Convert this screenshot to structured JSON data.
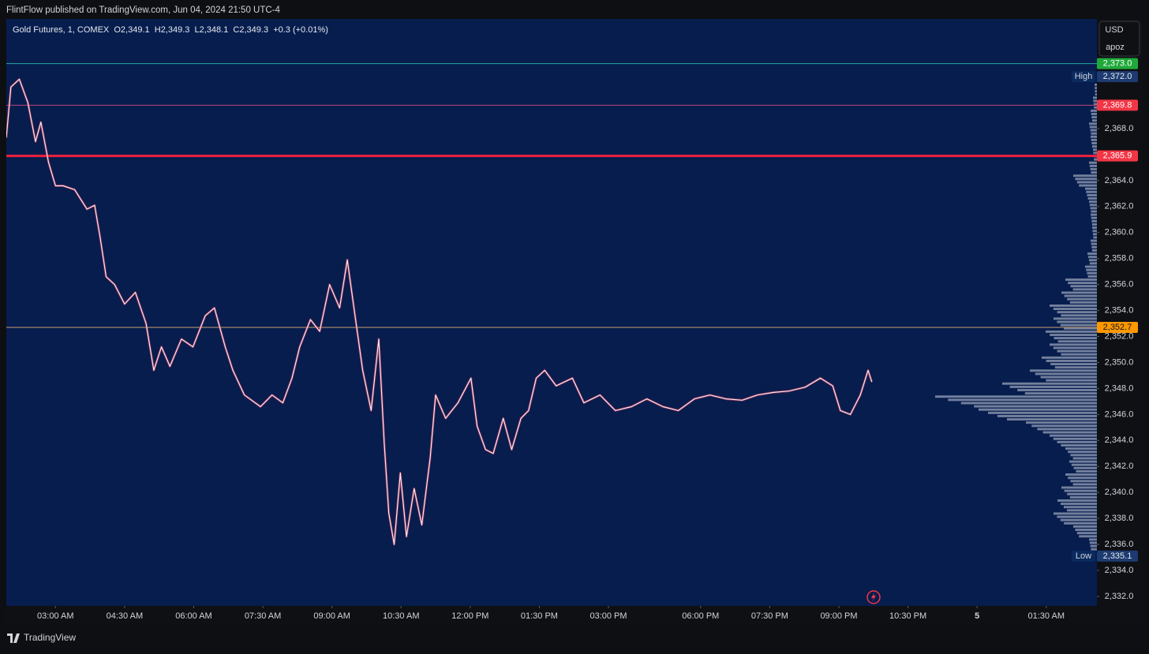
{
  "header": {
    "text": "FlintFlow published on TradingView.com, Jun 04, 2024 21:50 UTC-4"
  },
  "footer": {
    "brand": "TradingView"
  },
  "chart_data": {
    "type": "line",
    "title": "Gold Futures, 1, COMEX  O2,349.1  H2,349.3  L2,348.1  C2,349.3  +0.3 (+0.01%)",
    "currency": "USD",
    "scale_mode": "apoz",
    "color": "#f3e9ee",
    "x": [
      0,
      6,
      17,
      28,
      38,
      45,
      55,
      64,
      74,
      89,
      105,
      115,
      122,
      130,
      141,
      154,
      168,
      182,
      192,
      202,
      213,
      228,
      243,
      259,
      271,
      285,
      295,
      310,
      331,
      346,
      360,
      372,
      382,
      396,
      408,
      421,
      434,
      444,
      454,
      464,
      475,
      485,
      492,
      498,
      505,
      513,
      521,
      531,
      541,
      552,
      559,
      572,
      588,
      605,
      613,
      624,
      634,
      647,
      658,
      670,
      680,
      690,
      701,
      716,
      737,
      752,
      773,
      793,
      814,
      834,
      855,
      875,
      896,
      916,
      937,
      958,
      978,
      999,
      1019,
      1040,
      1060,
      1076,
      1086,
      1099,
      1112,
      1122,
      1127
    ],
    "values": [
      2367.3,
      2371.2,
      2371.8,
      2370.0,
      2367.0,
      2368.5,
      2365.4,
      2363.6,
      2363.6,
      2363.3,
      2361.8,
      2362.1,
      2359.7,
      2356.6,
      2356.0,
      2354.5,
      2355.4,
      2353.0,
      2349.4,
      2351.2,
      2349.7,
      2351.8,
      2351.2,
      2353.6,
      2354.2,
      2351.2,
      2349.4,
      2347.5,
      2346.6,
      2347.5,
      2346.9,
      2348.8,
      2351.2,
      2353.3,
      2352.4,
      2356.0,
      2354.2,
      2357.9,
      2353.6,
      2349.4,
      2346.3,
      2351.8,
      2343.9,
      2338.4,
      2336.0,
      2341.5,
      2336.6,
      2340.3,
      2337.5,
      2342.7,
      2347.5,
      2345.7,
      2346.9,
      2348.8,
      2345.1,
      2343.3,
      2343.0,
      2345.7,
      2343.3,
      2345.7,
      2346.3,
      2348.8,
      2349.4,
      2348.2,
      2348.8,
      2346.9,
      2347.5,
      2346.3,
      2346.6,
      2347.2,
      2346.6,
      2346.3,
      2347.2,
      2347.5,
      2347.2,
      2347.1,
      2347.5,
      2347.7,
      2347.8,
      2348.1,
      2348.8,
      2348.2,
      2346.3,
      2346.0,
      2347.5,
      2349.4,
      2348.5
    ],
    "xlim": [
      0,
      1420
    ],
    "xticks": [
      {
        "value": 64,
        "label": "03:00 AM"
      },
      {
        "value": 154,
        "label": "04:30 AM"
      },
      {
        "value": 244,
        "label": "06:00 AM"
      },
      {
        "value": 334,
        "label": "07:30 AM"
      },
      {
        "value": 424,
        "label": "09:00 AM"
      },
      {
        "value": 514,
        "label": "10:30 AM"
      },
      {
        "value": 604,
        "label": "12:00 PM"
      },
      {
        "value": 694,
        "label": "01:30 PM"
      },
      {
        "value": 784,
        "label": "03:00 PM"
      },
      {
        "value": 904,
        "label": "06:00 PM"
      },
      {
        "value": 994,
        "label": "07:30 PM"
      },
      {
        "value": 1084,
        "label": "09:00 PM"
      },
      {
        "value": 1174,
        "label": "10:30 PM"
      },
      {
        "value": 1264,
        "label": "5"
      },
      {
        "value": 1354,
        "label": "01:30 AM"
      }
    ],
    "ylim": [
      2331.27,
      2376.44
    ],
    "yticks": [
      {
        "value": 2332,
        "label": "2,332.0"
      },
      {
        "value": 2334,
        "label": "2,334.0"
      },
      {
        "value": 2336,
        "label": "2,336.0"
      },
      {
        "value": 2338,
        "label": "2,338.0"
      },
      {
        "value": 2340,
        "label": "2,340.0"
      },
      {
        "value": 2342,
        "label": "2,342.0"
      },
      {
        "value": 2344,
        "label": "2,344.0"
      },
      {
        "value": 2346,
        "label": "2,346.0"
      },
      {
        "value": 2348,
        "label": "2,348.0"
      },
      {
        "value": 2350,
        "label": "2,350.0"
      },
      {
        "value": 2352,
        "label": "2,352.0"
      },
      {
        "value": 2354,
        "label": "2,354.0"
      },
      {
        "value": 2356,
        "label": "2,356.0"
      },
      {
        "value": 2358,
        "label": "2,358.0"
      },
      {
        "value": 2360,
        "label": "2,360.0"
      },
      {
        "value": 2362,
        "label": "2,362.0"
      },
      {
        "value": 2364,
        "label": "2,364.0"
      },
      {
        "value": 2368,
        "label": "2,368.0"
      }
    ],
    "levels": [
      {
        "value": 2373.0,
        "label": "2,373.0",
        "color": "#1fa93a",
        "line_color": "#2aa7a0",
        "line_width": 1
      },
      {
        "value": 2369.8,
        "label": "2,369.8",
        "color": "#f23645",
        "line_color": "#b8457a",
        "line_width": 1
      },
      {
        "value": 2365.9,
        "label": "2,365.9",
        "color": "#f23645",
        "line_color": "#f0213f",
        "line_width": 3
      },
      {
        "value": 2352.7,
        "label": "2,352.7",
        "color": "#ff9800",
        "line_color": "#c9a070",
        "line_width": 1
      }
    ],
    "markers": [
      {
        "text": "High",
        "value": 2372.0,
        "label": "2,372.0"
      },
      {
        "text": "Low",
        "value": 2335.1,
        "label": "2,335.1"
      }
    ],
    "volume_profile": {
      "color": "#98a2b8",
      "xlim": [
        0,
        210
      ],
      "prices": [
        2336,
        2337,
        2338,
        2339,
        2340,
        2341,
        2342,
        2343,
        2344,
        2345,
        2346,
        2347,
        2348,
        2349,
        2350,
        2351,
        2352,
        2353,
        2354,
        2355,
        2356,
        2357,
        2358,
        2359,
        2360,
        2361,
        2362,
        2363,
        2364,
        2365,
        2366,
        2367,
        2368,
        2369,
        2370,
        2371
      ],
      "values": [
        10,
        30,
        55,
        50,
        45,
        40,
        35,
        40,
        60,
        90,
        150,
        205,
        120,
        85,
        70,
        60,
        65,
        55,
        60,
        45,
        40,
        15,
        12,
        8,
        6,
        8,
        10,
        15,
        30,
        10,
        5,
        8,
        10,
        8,
        5,
        3
      ]
    }
  }
}
